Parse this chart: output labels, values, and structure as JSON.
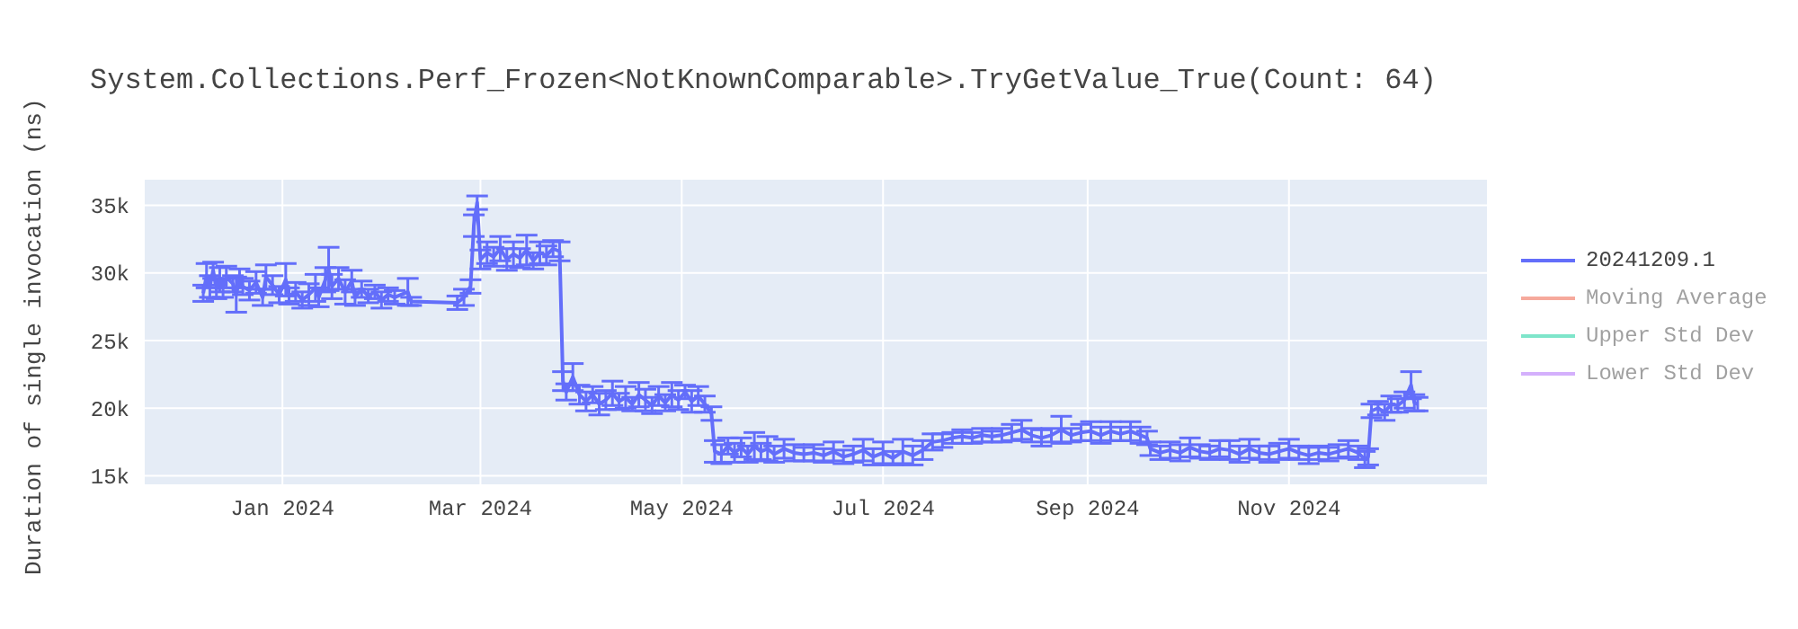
{
  "chart_data": {
    "type": "line",
    "title": "System.Collections.Perf_Frozen<NotKnownComparable>.TryGetValue_True(Count: 64)",
    "ylabel": "Duration of single invocation (ns)",
    "xlim": [
      "2023-11-20",
      "2024-12-31"
    ],
    "xticks": [
      {
        "value": "2024-01-01",
        "label": "Jan 2024"
      },
      {
        "value": "2024-03-01",
        "label": "Mar 2024"
      },
      {
        "value": "2024-05-01",
        "label": "May 2024"
      },
      {
        "value": "2024-07-01",
        "label": "Jul 2024"
      },
      {
        "value": "2024-09-01",
        "label": "Sep 2024"
      },
      {
        "value": "2024-11-01",
        "label": "Nov 2024"
      }
    ],
    "ylim": [
      14300,
      36900
    ],
    "yticks": [
      {
        "value": 15000,
        "label": "15k"
      },
      {
        "value": 20000,
        "label": "20k"
      },
      {
        "value": 25000,
        "label": "25k"
      },
      {
        "value": 30000,
        "label": "30k"
      },
      {
        "value": 35000,
        "label": "35k"
      }
    ],
    "grid": true,
    "legend": "top right",
    "marker": "none",
    "line_style": "solid",
    "series": [
      {
        "name": "20241209.1",
        "color": "#636efa",
        "x": [
          "2023-12-08",
          "2023-12-09",
          "2023-12-10",
          "2023-12-11",
          "2023-12-12",
          "2023-12-13",
          "2023-12-14",
          "2023-12-15",
          "2023-12-17",
          "2023-12-18",
          "2023-12-19",
          "2023-12-20",
          "2023-12-22",
          "2023-12-24",
          "2023-12-26",
          "2023-12-27",
          "2023-12-29",
          "2023-12-31",
          "2024-01-02",
          "2024-01-03",
          "2024-01-05",
          "2024-01-07",
          "2024-01-09",
          "2024-01-11",
          "2024-01-12",
          "2024-01-14",
          "2024-01-15",
          "2024-01-16",
          "2024-01-18",
          "2024-01-20",
          "2024-01-22",
          "2024-01-23",
          "2024-01-25",
          "2024-01-27",
          "2024-01-29",
          "2024-01-31",
          "2024-02-02",
          "2024-02-04",
          "2024-02-08",
          "2024-02-09",
          "2024-02-23",
          "2024-02-25",
          "2024-02-27",
          "2024-02-28",
          "2024-02-29",
          "2024-03-01",
          "2024-03-03",
          "2024-03-05",
          "2024-03-07",
          "2024-03-09",
          "2024-03-11",
          "2024-03-13",
          "2024-03-15",
          "2024-03-17",
          "2024-03-19",
          "2024-03-21",
          "2024-03-23",
          "2024-03-25",
          "2024-03-26",
          "2024-03-27",
          "2024-03-29",
          "2024-03-31",
          "2024-04-02",
          "2024-04-04",
          "2024-04-06",
          "2024-04-08",
          "2024-04-10",
          "2024-04-12",
          "2024-04-14",
          "2024-04-16",
          "2024-04-18",
          "2024-04-20",
          "2024-04-22",
          "2024-04-24",
          "2024-04-26",
          "2024-04-28",
          "2024-04-30",
          "2024-05-02",
          "2024-05-04",
          "2024-05-06",
          "2024-05-08",
          "2024-05-10",
          "2024-05-11",
          "2024-05-13",
          "2024-05-15",
          "2024-05-17",
          "2024-05-19",
          "2024-05-21",
          "2024-05-23",
          "2024-05-25",
          "2024-05-27",
          "2024-05-29",
          "2024-06-01",
          "2024-06-04",
          "2024-06-07",
          "2024-06-10",
          "2024-06-13",
          "2024-06-16",
          "2024-06-19",
          "2024-06-22",
          "2024-06-25",
          "2024-06-28",
          "2024-07-01",
          "2024-07-04",
          "2024-07-07",
          "2024-07-10",
          "2024-07-13",
          "2024-07-16",
          "2024-07-19",
          "2024-07-22",
          "2024-07-25",
          "2024-07-28",
          "2024-07-31",
          "2024-08-03",
          "2024-08-06",
          "2024-08-09",
          "2024-08-12",
          "2024-08-15",
          "2024-08-18",
          "2024-08-21",
          "2024-08-24",
          "2024-08-27",
          "2024-08-30",
          "2024-09-02",
          "2024-09-05",
          "2024-09-08",
          "2024-09-11",
          "2024-09-14",
          "2024-09-17",
          "2024-09-19",
          "2024-09-20",
          "2024-09-23",
          "2024-09-26",
          "2024-09-29",
          "2024-10-02",
          "2024-10-05",
          "2024-10-08",
          "2024-10-11",
          "2024-10-14",
          "2024-10-17",
          "2024-10-20",
          "2024-10-23",
          "2024-10-26",
          "2024-10-29",
          "2024-11-01",
          "2024-11-04",
          "2024-11-07",
          "2024-11-10",
          "2024-11-13",
          "2024-11-16",
          "2024-11-19",
          "2024-11-22",
          "2024-11-24",
          "2024-11-25",
          "2024-11-26",
          "2024-11-28",
          "2024-11-30",
          "2024-12-02",
          "2024-12-04",
          "2024-12-06",
          "2024-12-08",
          "2024-12-09",
          "2024-12-10"
        ],
        "values": [
          28500,
          29800,
          29000,
          30200,
          28800,
          29500,
          28900,
          29700,
          29200,
          28400,
          29600,
          29000,
          28700,
          29300,
          28200,
          29700,
          29100,
          28400,
          29500,
          28300,
          28600,
          28000,
          28400,
          28900,
          28200,
          29500,
          30300,
          29000,
          29600,
          28600,
          29400,
          28200,
          28800,
          28300,
          28600,
          28000,
          28400,
          28200,
          28600,
          27900,
          27800,
          28200,
          29000,
          33500,
          35200,
          31000,
          31500,
          31200,
          31800,
          31000,
          31400,
          31100,
          31700,
          30900,
          31500,
          31300,
          31800,
          31600,
          22000,
          21200,
          22300,
          21000,
          20500,
          21000,
          20300,
          20600,
          21100,
          20500,
          20800,
          20300,
          21000,
          20600,
          20200,
          20900,
          20400,
          21000,
          20600,
          21200,
          20500,
          20900,
          20300,
          19600,
          16800,
          16600,
          17200,
          16700,
          17100,
          16600,
          17200,
          16800,
          17000,
          16600,
          17000,
          16700,
          16600,
          16700,
          16500,
          16800,
          16400,
          16600,
          16900,
          16400,
          16700,
          16300,
          16800,
          16500,
          16900,
          17500,
          17600,
          17800,
          17900,
          17800,
          18000,
          17900,
          18000,
          18200,
          18400,
          18000,
          17800,
          18000,
          18400,
          18000,
          18200,
          18300,
          18000,
          18300,
          18100,
          18300,
          18000,
          17800,
          17000,
          16700,
          16900,
          16700,
          17100,
          16800,
          16700,
          17000,
          16900,
          16600,
          17000,
          16700,
          16600,
          16800,
          17000,
          16700,
          16500,
          16700,
          16600,
          16800,
          17000,
          16700,
          16200,
          16400,
          19800,
          20000,
          19700,
          20300,
          20200,
          20600,
          21700,
          20400,
          20300
        ],
        "errors": [
          600,
          900,
          800,
          600,
          700,
          900,
          700,
          800,
          600,
          1300,
          700,
          600,
          700,
          800,
          600,
          900,
          700,
          600,
          1200,
          600,
          700,
          600,
          800,
          1000,
          700,
          900,
          1600,
          900,
          800,
          900,
          800,
          600,
          600,
          500,
          500,
          600,
          500,
          500,
          1000,
          300,
          500,
          600,
          500,
          800,
          500,
          700,
          800,
          700,
          900,
          800,
          900,
          700,
          1100,
          600,
          800,
          700,
          600,
          700,
          700,
          600,
          1000,
          700,
          700,
          600,
          800,
          700,
          900,
          600,
          800,
          500,
          900,
          800,
          600,
          700,
          600,
          900,
          700,
          500,
          800,
          700,
          600,
          500,
          800,
          700,
          600,
          700,
          700,
          600,
          1000,
          600,
          900,
          600,
          700,
          600,
          500,
          600,
          500,
          700,
          500,
          600,
          800,
          600,
          800,
          500,
          900,
          700,
          700,
          600,
          500,
          400,
          500,
          400,
          500,
          400,
          500,
          600,
          700,
          500,
          600,
          500,
          1000,
          500,
          600,
          700,
          600,
          700,
          500,
          700,
          600,
          500,
          500,
          500,
          600,
          600,
          700,
          500,
          500,
          600,
          700,
          600,
          700,
          500,
          600,
          600,
          700,
          500,
          600,
          500,
          500,
          500,
          600,
          500,
          600,
          600,
          500,
          500,
          600,
          600,
          500,
          600,
          1000,
          600,
          500
        ]
      },
      {
        "name": "Moving Average",
        "color": "#ef553b"
      },
      {
        "name": "Upper Std Dev",
        "color": "#00cc96"
      },
      {
        "name": "Lower Std Dev",
        "color": "#ab63fa"
      }
    ]
  }
}
